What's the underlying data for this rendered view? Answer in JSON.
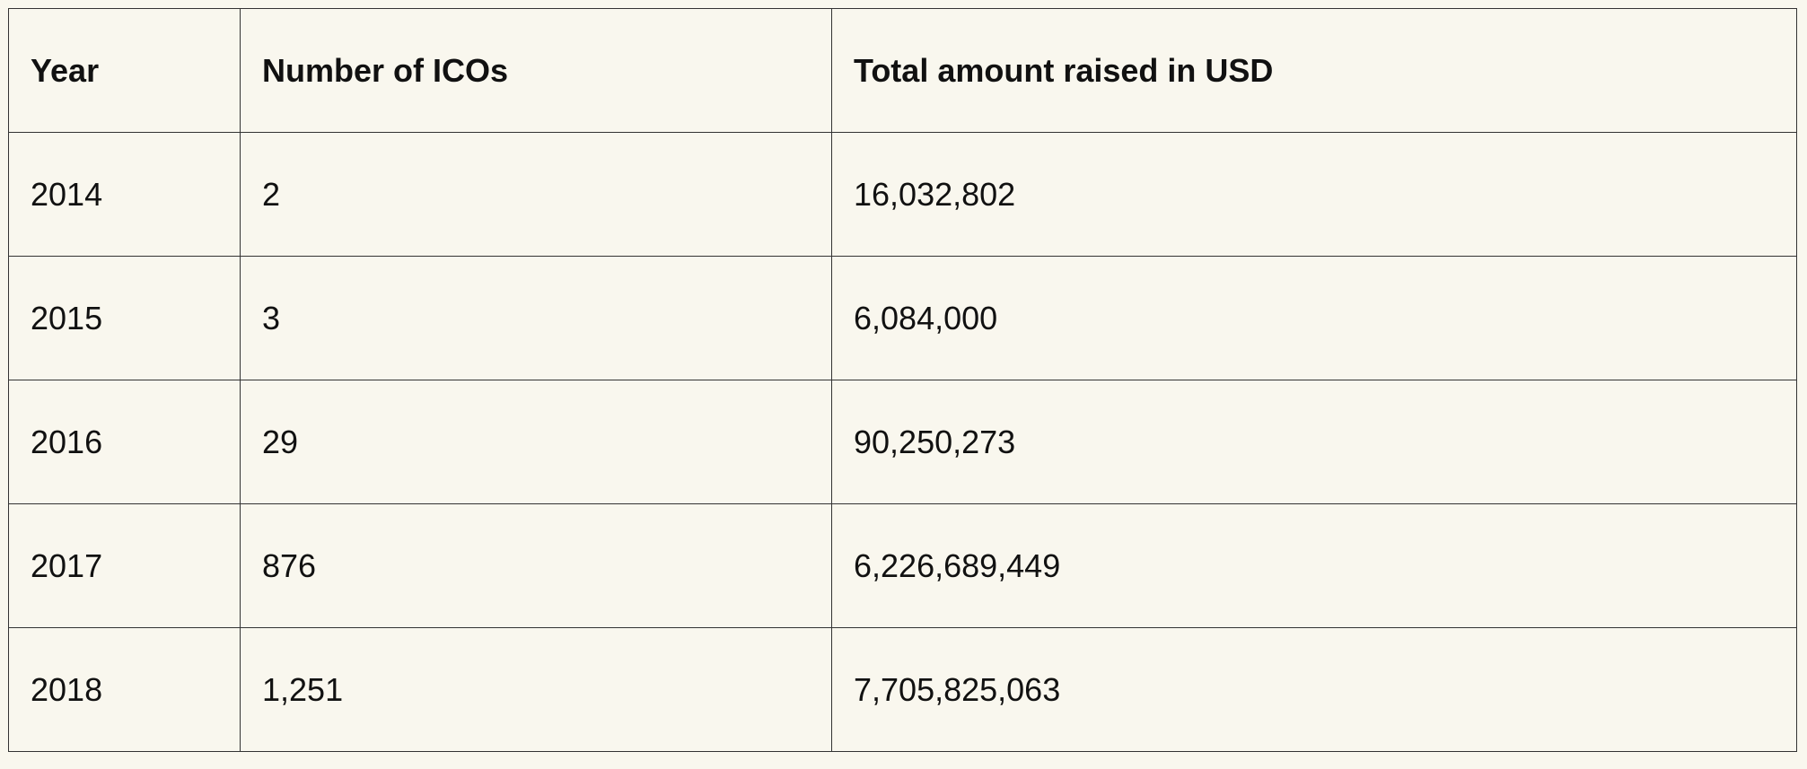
{
  "table": {
    "headers": [
      "Year",
      "Number of ICOs",
      "Total amount raised in USD"
    ],
    "rows": [
      [
        "2014",
        "2",
        "16,032,802"
      ],
      [
        "2015",
        "3",
        "6,084,000"
      ],
      [
        "2016",
        "29",
        "90,250,273"
      ],
      [
        "2017",
        "876",
        "6,226,689,449"
      ],
      [
        "2018",
        "1,251",
        "7,705,825,063"
      ]
    ]
  }
}
